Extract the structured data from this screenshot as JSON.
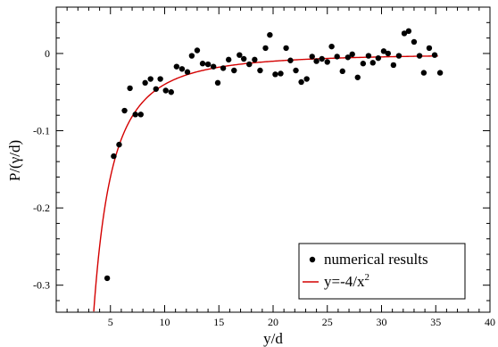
{
  "chart_data": {
    "type": "scatter",
    "xlabel": "y/d",
    "ylabel": "P/(γ/d)",
    "xlim": [
      0,
      40
    ],
    "ylim": [
      -0.335,
      0.06
    ],
    "x_ticks": [
      5,
      10,
      15,
      20,
      25,
      30,
      35,
      40
    ],
    "y_ticks": [
      0,
      -0.1,
      -0.2,
      -0.3
    ],
    "x_tick_labels": [
      "5",
      "10",
      "15",
      "20",
      "25",
      "30",
      "35",
      "40"
    ],
    "y_tick_labels": [
      "0",
      "-0.1",
      "-0.2",
      "-0.3"
    ],
    "grid": false,
    "legend_position": "bottom-right",
    "legend": [
      {
        "label": "numerical results",
        "marker": "dot",
        "color": "#000000"
      },
      {
        "label": "y=-4/x",
        "superscript": "2",
        "marker": "line",
        "color": "#d40000"
      }
    ],
    "series": [
      {
        "name": "numerical results",
        "kind": "scatter",
        "color": "#000000",
        "points": [
          [
            4.7,
            -0.291
          ],
          [
            5.3,
            -0.133
          ],
          [
            5.8,
            -0.118
          ],
          [
            6.3,
            -0.074
          ],
          [
            6.8,
            -0.045
          ],
          [
            7.3,
            -0.079
          ],
          [
            7.8,
            -0.079
          ],
          [
            8.2,
            -0.038
          ],
          [
            8.7,
            -0.033
          ],
          [
            9.2,
            -0.046
          ],
          [
            9.6,
            -0.033
          ],
          [
            10.1,
            -0.048
          ],
          [
            10.6,
            -0.05
          ],
          [
            11.1,
            -0.017
          ],
          [
            11.6,
            -0.02
          ],
          [
            12.1,
            -0.024
          ],
          [
            12.5,
            -0.003
          ],
          [
            13.0,
            0.004
          ],
          [
            13.5,
            -0.013
          ],
          [
            14.0,
            -0.014
          ],
          [
            14.5,
            -0.017
          ],
          [
            14.9,
            -0.038
          ],
          [
            15.4,
            -0.019
          ],
          [
            15.9,
            -0.008
          ],
          [
            16.4,
            -0.022
          ],
          [
            16.9,
            -0.002
          ],
          [
            17.3,
            -0.007
          ],
          [
            17.8,
            -0.014
          ],
          [
            18.3,
            -0.008
          ],
          [
            18.8,
            -0.022
          ],
          [
            19.3,
            0.007
          ],
          [
            19.7,
            0.024
          ],
          [
            20.2,
            -0.027
          ],
          [
            20.7,
            -0.026
          ],
          [
            21.2,
            0.007
          ],
          [
            21.6,
            -0.009
          ],
          [
            22.1,
            -0.022
          ],
          [
            22.6,
            -0.037
          ],
          [
            23.1,
            -0.033
          ],
          [
            23.6,
            -0.004
          ],
          [
            24.0,
            -0.01
          ],
          [
            24.5,
            -0.007
          ],
          [
            25.0,
            -0.011
          ],
          [
            25.4,
            0.009
          ],
          [
            25.9,
            -0.004
          ],
          [
            26.4,
            -0.023
          ],
          [
            26.9,
            -0.005
          ],
          [
            27.3,
            -0.001
          ],
          [
            27.8,
            -0.031
          ],
          [
            28.3,
            -0.013
          ],
          [
            28.8,
            -0.003
          ],
          [
            29.2,
            -0.012
          ],
          [
            29.7,
            -0.006
          ],
          [
            30.2,
            0.003
          ],
          [
            30.6,
            0.0
          ],
          [
            31.1,
            -0.015
          ],
          [
            31.6,
            -0.003
          ],
          [
            32.1,
            0.026
          ],
          [
            32.5,
            0.029
          ],
          [
            33.0,
            0.015
          ],
          [
            33.5,
            -0.003
          ],
          [
            33.9,
            -0.025
          ],
          [
            34.4,
            0.007
          ],
          [
            34.9,
            -0.002
          ],
          [
            35.4,
            -0.025
          ]
        ]
      },
      {
        "name": "y=-4/x²",
        "kind": "line",
        "color": "#d40000",
        "formula": "-4/x^2",
        "x_range": [
          3.46,
          35.2
        ]
      }
    ]
  }
}
